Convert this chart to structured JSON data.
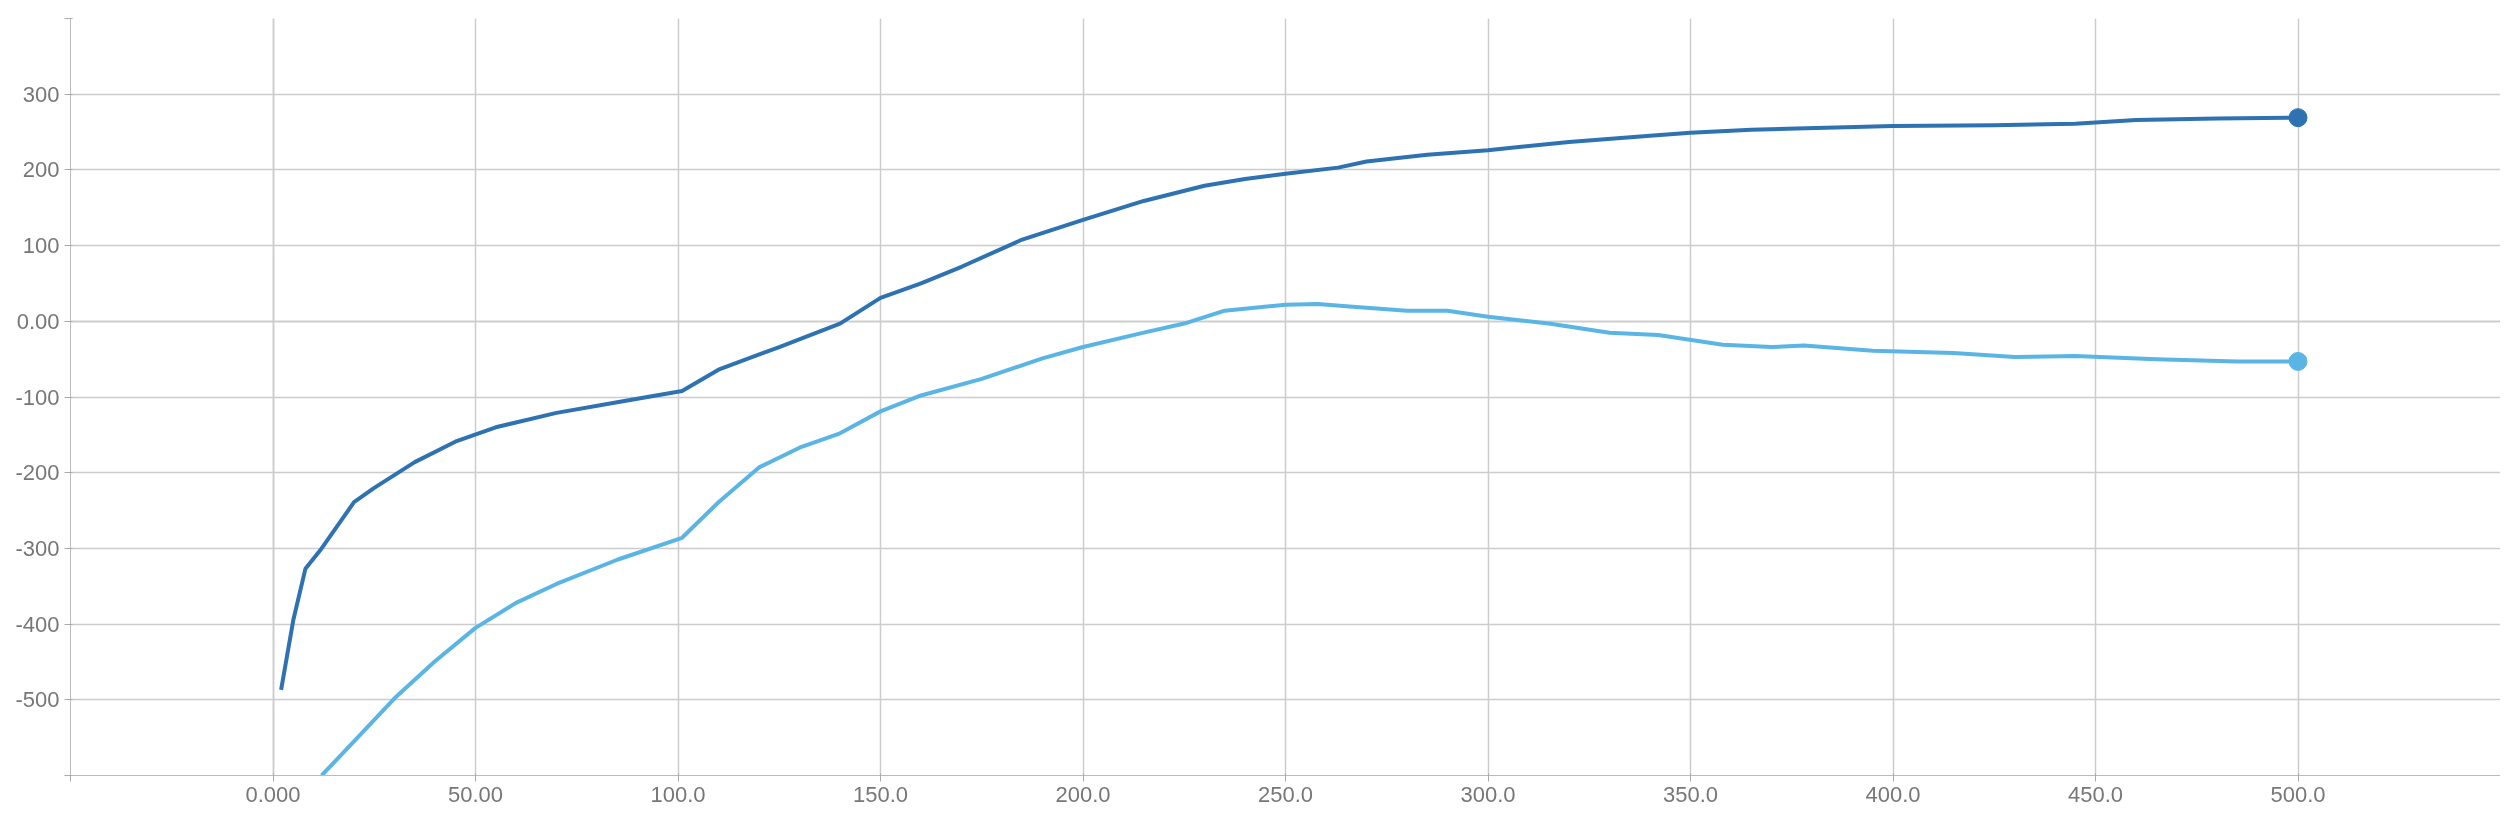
{
  "chart_data": {
    "type": "line",
    "grid": true,
    "line_style": "solid",
    "xlim": [
      -50,
      550
    ],
    "xticks": [
      {
        "value": -50,
        "label": null
      },
      {
        "value": 0,
        "label": "0.000"
      },
      {
        "value": 50,
        "label": "50.00"
      },
      {
        "value": 100,
        "label": "100.0"
      },
      {
        "value": 150,
        "label": "150.0"
      },
      {
        "value": 200,
        "label": "200.0"
      },
      {
        "value": 250,
        "label": "250.0"
      },
      {
        "value": 300,
        "label": "300.0"
      },
      {
        "value": 350,
        "label": "350.0"
      },
      {
        "value": 400,
        "label": "400.0"
      },
      {
        "value": 450,
        "label": "450.0"
      },
      {
        "value": 500,
        "label": "500.0"
      }
    ],
    "ylim": [
      -600,
      400
    ],
    "yticks": [
      {
        "value": -600,
        "label": null
      },
      -500,
      -400,
      -300,
      -200,
      -100,
      {
        "value": 0,
        "label": "0.00"
      },
      100,
      200,
      300,
      {
        "value": 400,
        "label": null
      }
    ],
    "series": [
      {
        "color": "#2e72b2",
        "x": [
          2,
          5,
          8,
          12,
          20,
          25,
          35,
          45,
          55,
          70,
          85,
          101,
          110,
          125,
          140,
          150,
          160,
          170,
          185,
          200,
          215,
          230,
          240,
          250,
          263,
          270,
          285,
          300,
          320,
          340,
          350,
          365,
          400,
          425,
          445,
          460,
          480,
          500
        ],
        "values": [
          -487,
          -395,
          -327,
          -300,
          -239,
          -220,
          -186,
          -159,
          -140,
          -121,
          -107,
          -92,
          -64,
          -34,
          -3,
          31,
          50,
          72,
          108,
          134,
          159,
          179,
          188,
          195,
          203,
          211,
          220,
          226,
          237,
          245,
          249,
          253,
          258,
          259,
          261,
          266,
          268,
          269
        ]
      },
      {
        "color": "#5bb5e4",
        "x": [
          12,
          20,
          30,
          40,
          50,
          60,
          70,
          85,
          101,
          110,
          120,
          130,
          140,
          150,
          160,
          175,
          190,
          200,
          215,
          225,
          235,
          250,
          258,
          265,
          280,
          290,
          300,
          315,
          330,
          342,
          358,
          370,
          378,
          395,
          415,
          430,
          445,
          465,
          485,
          500
        ],
        "values": [
          -600,
          -555,
          -498,
          -449,
          -405,
          -372,
          -347,
          -315,
          -286,
          -239,
          -193,
          -167,
          -148,
          -119,
          -98,
          -76,
          -49,
          -34,
          -15,
          -3,
          14,
          22,
          23,
          20,
          14,
          14,
          6,
          -3,
          -15,
          -18,
          -31,
          -34,
          -32,
          -39,
          -42,
          -47,
          -46,
          -50,
          -53,
          -53
        ]
      },
      {
        "type": "scatter",
        "marker": "circle",
        "color": "#2e72b2",
        "x": [
          500
        ],
        "values": [
          269
        ]
      },
      {
        "type": "scatter",
        "marker": "circle",
        "color": "#5bb5e4",
        "x": [
          500
        ],
        "values": [
          -53
        ]
      }
    ]
  }
}
